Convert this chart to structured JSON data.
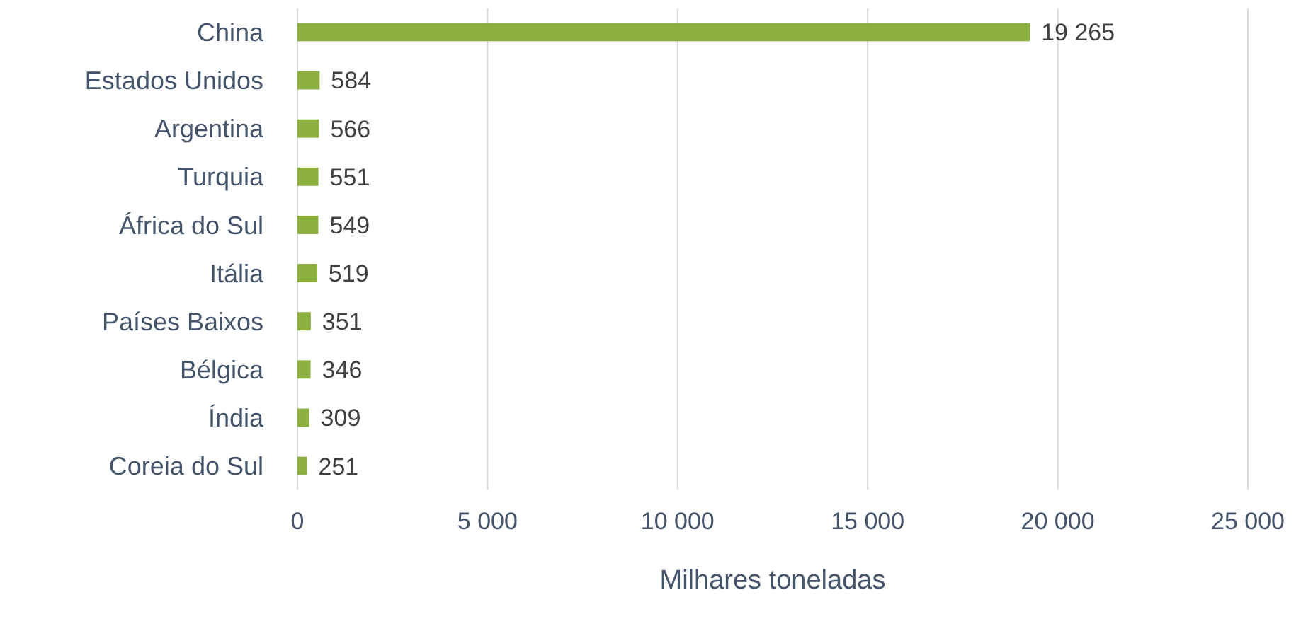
{
  "chart_data": {
    "type": "bar",
    "orientation": "horizontal",
    "xlabel": "Milhares toneladas",
    "categories": [
      "China",
      "Estados Unidos",
      "Argentina",
      "Turquia",
      "África do Sul",
      "Itália",
      "Países Baixos",
      "Bélgica",
      "Índia",
      "Coreia do Sul"
    ],
    "values": [
      19265,
      584,
      566,
      551,
      549,
      519,
      351,
      346,
      309,
      251
    ],
    "value_labels": [
      "19 265",
      "584",
      "566",
      "551",
      "549",
      "519",
      "351",
      "346",
      "309",
      "251"
    ],
    "color": "#8cb040",
    "xlim": [
      0,
      25000
    ],
    "xticks": [
      0,
      {
        "value": 5000,
        "label": "5 000"
      },
      {
        "value": 10000,
        "label": "10 000"
      },
      {
        "value": 15000,
        "label": "15 000"
      },
      {
        "value": 20000,
        "label": "20 000"
      },
      {
        "value": 25000,
        "label": "25 000"
      }
    ],
    "grid": "x"
  }
}
